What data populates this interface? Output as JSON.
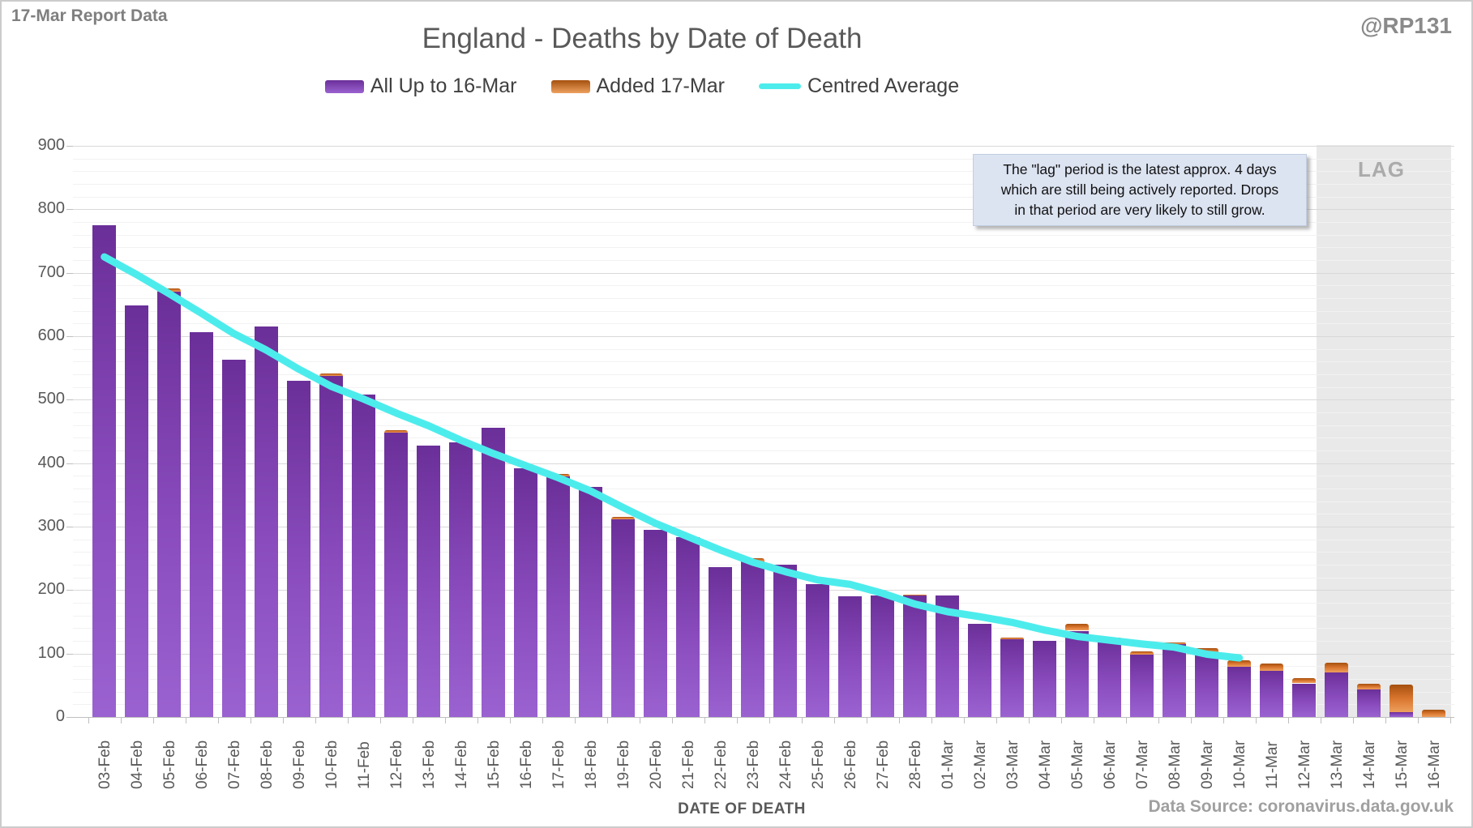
{
  "header": {
    "report_label": "17-Mar Report Data",
    "handle": "@RP131"
  },
  "chart_data": {
    "type": "bar",
    "title": "England - Deaths by Date of Death",
    "xlabel": "DATE OF DEATH",
    "ylabel": "",
    "ylim": [
      0,
      900
    ],
    "y_major_step": 100,
    "y_minor_step": 20,
    "grid": true,
    "legend_position": "top",
    "categories": [
      "03-Feb",
      "04-Feb",
      "05-Feb",
      "06-Feb",
      "07-Feb",
      "08-Feb",
      "09-Feb",
      "10-Feb",
      "11-Feb",
      "12-Feb",
      "13-Feb",
      "14-Feb",
      "15-Feb",
      "16-Feb",
      "17-Feb",
      "18-Feb",
      "19-Feb",
      "20-Feb",
      "21-Feb",
      "22-Feb",
      "23-Feb",
      "24-Feb",
      "25-Feb",
      "26-Feb",
      "27-Feb",
      "28-Feb",
      "01-Mar",
      "02-Mar",
      "03-Mar",
      "04-Mar",
      "05-Mar",
      "06-Mar",
      "07-Mar",
      "08-Mar",
      "09-Mar",
      "10-Mar",
      "11-Mar",
      "12-Mar",
      "13-Mar",
      "14-Mar",
      "15-Mar",
      "16-Mar"
    ],
    "series": [
      {
        "name": "All Up to 16-Mar",
        "type": "bar",
        "color_top": "#6b2f99",
        "color_bottom": "#9a62d0",
        "values": [
          775,
          648,
          670,
          606,
          563,
          615,
          530,
          538,
          508,
          448,
          428,
          433,
          456,
          392,
          379,
          363,
          312,
          295,
          284,
          236,
          245,
          240,
          209,
          190,
          192,
          191,
          191,
          147,
          122,
          120,
          136,
          123,
          98,
          115,
          100,
          79,
          73,
          53,
          70,
          43,
          8,
          0
        ]
      },
      {
        "name": "Added 17-Mar",
        "type": "bar",
        "color_top": "#a5500f",
        "color_bottom": "#eda05e",
        "values": [
          0,
          0,
          6,
          0,
          0,
          0,
          0,
          3,
          0,
          4,
          0,
          0,
          0,
          0,
          4,
          0,
          3,
          0,
          0,
          0,
          5,
          0,
          0,
          0,
          0,
          2,
          0,
          0,
          3,
          0,
          11,
          2,
          6,
          2,
          8,
          10,
          11,
          8,
          15,
          10,
          43,
          12
        ]
      },
      {
        "name": "Centred Average",
        "type": "line",
        "color": "#4decec",
        "start_index": 0,
        "values": [
          725,
          697,
          667,
          636,
          604,
          578,
          548,
          521,
          501,
          479,
          459,
          436,
          415,
          396,
          377,
          356,
          330,
          305,
          284,
          263,
          244,
          229,
          216,
          209,
          195,
          178,
          166,
          158,
          149,
          137,
          127,
          121,
          115,
          110,
          99,
          93
        ]
      }
    ],
    "lag_region": {
      "label": "LAG",
      "start_category": "13-Mar",
      "end_category": "16-Mar",
      "background": "#e9e9e9"
    }
  },
  "annotation": {
    "text": "The \"lag\" period is the latest approx. 4 days\nwhich are still being actively reported.  Drops\nin that period are very likely to still grow."
  },
  "footer": {
    "data_source": "Data Source: coronavirus.data.gov.uk"
  }
}
